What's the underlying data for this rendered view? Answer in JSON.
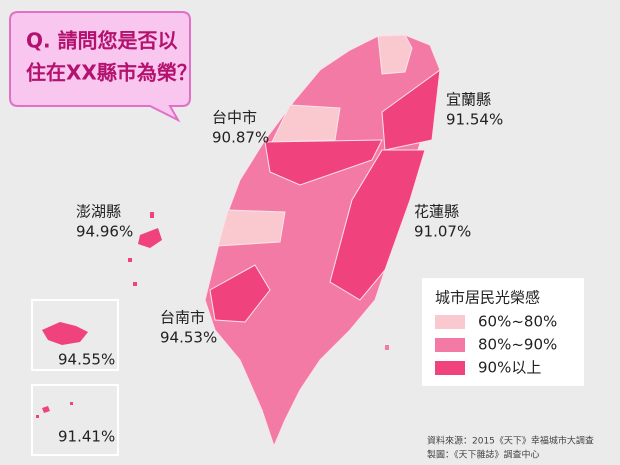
{
  "question": {
    "lines": [
      "Q. 請問您是否以",
      "住在XX縣市為榮？"
    ]
  },
  "labels": [
    {
      "name": "宜蘭縣",
      "value": "91.54%"
    },
    {
      "name": "台中市",
      "value": "90.87%"
    },
    {
      "name": "澎湖縣",
      "value": "94.96%"
    },
    {
      "name": "花蓮縣",
      "value": "91.07%"
    },
    {
      "name": "台南市",
      "value": "94.53%"
    }
  ],
  "insets": [
    "94.55%",
    "91.41%"
  ],
  "legend": {
    "title": "城市居民光榮感",
    "items": [
      {
        "label": "60%~80%",
        "color": "#f9c9cf"
      },
      {
        "label": "80%~90%",
        "color": "#f27aa5"
      },
      {
        "label": "90%以上",
        "color": "#f0427d"
      }
    ]
  },
  "source": [
    "資料來源：2015《天下》幸福城市大調查",
    "製圖：《天下雜誌》調查中心"
  ]
}
